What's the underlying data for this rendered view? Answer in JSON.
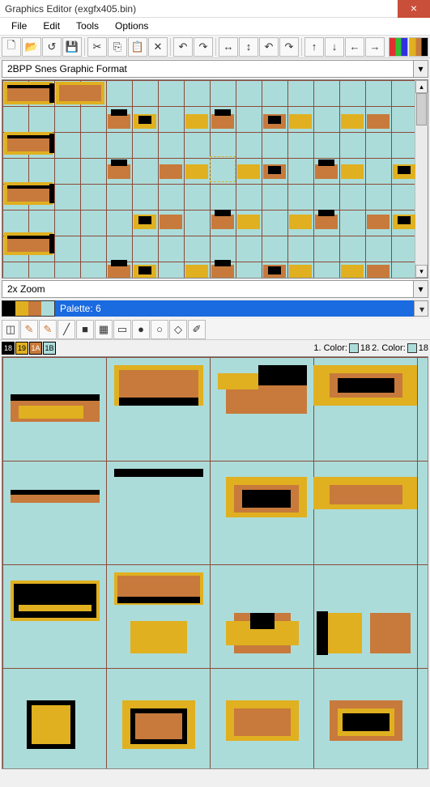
{
  "window": {
    "title": "Graphics Editor (exgfx405.bin)"
  },
  "menu": {
    "file": "File",
    "edit": "Edit",
    "tools": "Tools",
    "options": "Options"
  },
  "toolbar_icons": {
    "new": "🗋",
    "open": "📂",
    "revert": "↺",
    "save": "💾",
    "cut": "✂",
    "copy": "⎘",
    "paste": "📋",
    "delete": "✕",
    "undo": "↶",
    "redo": "↷",
    "fliph": "↔",
    "flipv": "↕",
    "rotl": "↶",
    "rotr": "↷",
    "up": "↑",
    "down": "↓",
    "left": "←",
    "right": "→",
    "pal": "◧",
    "palb": "◨"
  },
  "format_dropdown": {
    "label": "2BPP Snes Graphic Format"
  },
  "zoom_dropdown": {
    "label": "2x Zoom"
  },
  "palette": {
    "label": "Palette: 6",
    "entries": [
      "#000000",
      "#e0b020",
      "#c77a3c",
      "#acdcd9"
    ]
  },
  "draw_tools": {
    "marquee": "◫",
    "pencil": "✎",
    "pencil2": "✎",
    "line": "╱",
    "rectfill": "■",
    "gradient": "▦",
    "rect": "▭",
    "circfill": "●",
    "circ": "○",
    "eraser": "◇",
    "picker": "✐"
  },
  "color_indices": {
    "slots": [
      "18",
      "19",
      "1A",
      "1B"
    ],
    "slot_colors": [
      "#000000",
      "#e0b020",
      "#c77a3c",
      "#acdcd9"
    ],
    "label1": "1. Color:",
    "val1": "18",
    "label2": "2. Color:",
    "val2": "18",
    "sel1_bg": "#acdcd9",
    "sel2_bg": "#acdcd9"
  },
  "tile_colors": {
    "bg": "#acdcd9",
    "yellow": "#e0b020",
    "brown": "#c77a3c",
    "black": "#000000",
    "grid": "#8b4a3a"
  }
}
